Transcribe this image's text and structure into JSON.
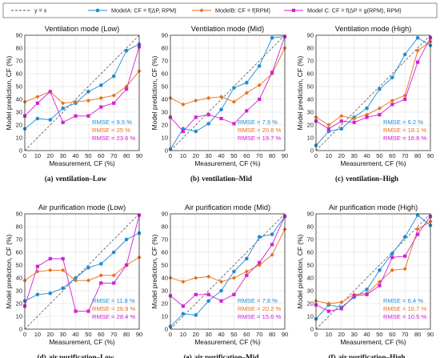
{
  "legend": {
    "items": [
      {
        "label": "y = x",
        "color": "#555555",
        "style": "dashed",
        "marker": "none"
      },
      {
        "label": "ModelA: CF = f(ΔP, RPM)",
        "color": "#1f8dd6",
        "style": "solid",
        "marker": "circle"
      },
      {
        "label": "ModelB: CF = f(RPM)",
        "color": "#e8701a",
        "style": "solid",
        "marker": "diamond"
      },
      {
        "label": "Model C: CF = f(ΔP = g(RPM), RPM)",
        "color": "#d61fd6",
        "style": "solid",
        "marker": "square"
      }
    ]
  },
  "colors": {
    "model_a": "#1f8dd6",
    "model_b": "#e8701a",
    "model_c": "#d61fd6",
    "ref_line": "#555555"
  },
  "chart_data": [
    {
      "type": "line",
      "title": "Ventilation mode (Low)",
      "caption_letter": "(a)",
      "caption_text": "ventilation–Low",
      "xlabel": "Measurement, CF (%)",
      "ylabel": "Model prediction, CF (%)",
      "xlim": [
        0,
        90
      ],
      "ylim": [
        0,
        90
      ],
      "ticks": [
        0,
        10,
        20,
        30,
        40,
        50,
        60,
        70,
        80,
        90
      ],
      "x": [
        0,
        10,
        20,
        30,
        40,
        50,
        60,
        70,
        80,
        90
      ],
      "series": [
        {
          "name": "ModelA: CF = f(ΔP, RPM)",
          "values": [
            17,
            25,
            24,
            33,
            37,
            46,
            51,
            58,
            78,
            83
          ],
          "rmse": "RMSE = 9.5 %"
        },
        {
          "name": "ModelB: CF = f(RPM)",
          "values": [
            38,
            42,
            46,
            37,
            38,
            39,
            41,
            43,
            50,
            62
          ],
          "rmse": "RMSE = 25 %"
        },
        {
          "name": "Model C: CF = f(ΔP = g(RPM), RPM)",
          "values": [
            27,
            37,
            46,
            22,
            27,
            27,
            34,
            37,
            48,
            81
          ],
          "rmse": "RMSE = 23.6 %"
        }
      ]
    },
    {
      "type": "line",
      "title": "Ventilation mode (Mid)",
      "caption_letter": "(b)",
      "caption_text": "ventilation–Mid",
      "xlabel": "Measurement, CF (%)",
      "ylabel": "Model prediction, CF (%)",
      "xlim": [
        0,
        90
      ],
      "ylim": [
        0,
        90
      ],
      "ticks": [
        0,
        10,
        20,
        30,
        40,
        50,
        60,
        70,
        80,
        90
      ],
      "x": [
        0,
        10,
        20,
        30,
        40,
        50,
        60,
        70,
        80,
        90
      ],
      "series": [
        {
          "name": "ModelA: CF = f(ΔP, RPM)",
          "values": [
            1,
            17,
            15,
            21,
            32,
            49,
            53,
            66,
            88,
            89
          ],
          "rmse": "RMSE = 7.9 %"
        },
        {
          "name": "ModelB: CF = f(RPM)",
          "values": [
            41,
            36,
            39,
            41,
            42,
            38,
            45,
            51,
            60,
            80
          ],
          "rmse": "RMSE = 20.6 %"
        },
        {
          "name": "Model C: CF = f(ΔP = g(RPM), RPM)",
          "values": [
            26,
            15,
            26,
            28,
            25,
            21,
            31,
            40,
            61,
            89
          ],
          "rmse": "RMSE = 19.7 %"
        }
      ]
    },
    {
      "type": "line",
      "title": "Ventilation mode (High)",
      "caption_letter": "(c)",
      "caption_text": "ventilation–High",
      "xlabel": "Measurement, CF (%)",
      "ylabel": "Model prediction, CF (%)",
      "xlim": [
        0,
        90
      ],
      "ylim": [
        0,
        90
      ],
      "ticks": [
        0,
        10,
        20,
        30,
        40,
        50,
        60,
        70,
        80,
        90
      ],
      "x": [
        0,
        10,
        20,
        30,
        40,
        50,
        60,
        70,
        80,
        90
      ],
      "series": [
        {
          "name": "ModelA: CF = f(ΔP, RPM)",
          "values": [
            4,
            15,
            17,
            26,
            33,
            48,
            57,
            75,
            88,
            82
          ],
          "rmse": "RMSE = 6.2 %"
        },
        {
          "name": "ModelB: CF = f(RPM)",
          "values": [
            26,
            20,
            27,
            25,
            28,
            33,
            39,
            43,
            78,
            85
          ],
          "rmse": "RMSE = 18.1 %"
        },
        {
          "name": "Model C: CF = f(ΔP = g(RPM), RPM)",
          "values": [
            23,
            17,
            23,
            22,
            26,
            28,
            36,
            40,
            69,
            88
          ],
          "rmse": "RMSE = 16.6 %"
        }
      ]
    },
    {
      "type": "line",
      "title": "Air purification mode (Low)",
      "caption_letter": "(d)",
      "caption_text": "air purification–Low",
      "xlabel": "Measurement, CF (%)",
      "ylabel": "Model prediction, CF (%)",
      "xlim": [
        0,
        90
      ],
      "ylim": [
        0,
        90
      ],
      "ticks": [
        0,
        10,
        20,
        30,
        40,
        50,
        60,
        70,
        80,
        90
      ],
      "x": [
        0,
        10,
        20,
        30,
        40,
        50,
        60,
        70,
        80,
        90
      ],
      "series": [
        {
          "name": "ModelA: CF = f(ΔP, RPM)",
          "values": [
            22,
            27,
            28,
            32,
            40,
            48,
            51,
            60,
            70,
            75
          ],
          "rmse": "RMSE = 11.8 %"
        },
        {
          "name": "ModelB: CF = f(RPM)",
          "values": [
            38,
            45,
            46,
            46,
            38,
            38,
            42,
            42,
            50,
            56
          ],
          "rmse": "RMSE = 26.9 %"
        },
        {
          "name": "Model C: CF = f(ΔP = g(RPM), RPM)",
          "values": [
            18,
            49,
            55,
            55,
            14,
            14,
            36,
            36,
            50,
            89
          ],
          "rmse": "RMSE = 28.4 %"
        }
      ]
    },
    {
      "type": "line",
      "title": "Air purification mode (Mid)",
      "caption_letter": "(e)",
      "caption_text": "air purification–Mid",
      "xlabel": "Measurement, CF (%)",
      "ylabel": "Model prediction, CF (%)",
      "xlim": [
        0,
        90
      ],
      "ylim": [
        0,
        90
      ],
      "ticks": [
        0,
        10,
        20,
        30,
        40,
        50,
        60,
        70,
        80,
        90
      ],
      "x": [
        0,
        10,
        20,
        30,
        40,
        50,
        60,
        70,
        80,
        90
      ],
      "series": [
        {
          "name": "ModelA: CF = f(ΔP, RPM)",
          "values": [
            2,
            12,
            11,
            22,
            30,
            45,
            55,
            72,
            74,
            88
          ],
          "rmse": "RMSE = 7.8 %"
        },
        {
          "name": "ModelB: CF = f(RPM)",
          "values": [
            40,
            37,
            40,
            41,
            37,
            40,
            45,
            50,
            58,
            78
          ],
          "rmse": "RMSE = 20.2 %"
        },
        {
          "name": "Model C: CF = f(ΔP = g(RPM), RPM)",
          "values": [
            26,
            18,
            27,
            27,
            22,
            27,
            42,
            52,
            66,
            88
          ],
          "rmse": "RMSE = 15.6 %"
        }
      ]
    },
    {
      "type": "line",
      "title": "Air purification mode (High)",
      "caption_letter": "(f)",
      "caption_text": "air purification–High",
      "xlabel": "Measurement, CF (%)",
      "ylabel": "Model prediction, CF (%)",
      "xlim": [
        0,
        90
      ],
      "ylim": [
        0,
        90
      ],
      "ticks": [
        0,
        10,
        20,
        30,
        40,
        50,
        60,
        70,
        80,
        90
      ],
      "x": [
        0,
        10,
        20,
        30,
        40,
        50,
        60,
        70,
        80,
        90
      ],
      "series": [
        {
          "name": "ModelA: CF = f(ΔP, RPM)",
          "values": [
            8,
            19,
            17,
            25,
            31,
            46,
            59,
            72,
            89,
            81
          ],
          "rmse": "RMSE = 6.4 %"
        },
        {
          "name": "ModelB: CF = f(RPM)",
          "values": [
            22,
            20,
            21,
            27,
            28,
            37,
            46,
            47,
            78,
            84
          ],
          "rmse": "RMSE = 16.7 %"
        },
        {
          "name": "Model C: CF = f(ΔP = g(RPM), RPM)",
          "values": [
            19,
            14,
            16,
            26,
            27,
            34,
            56,
            57,
            74,
            88
          ],
          "rmse": "RMSE = 10.5 %"
        }
      ]
    }
  ]
}
